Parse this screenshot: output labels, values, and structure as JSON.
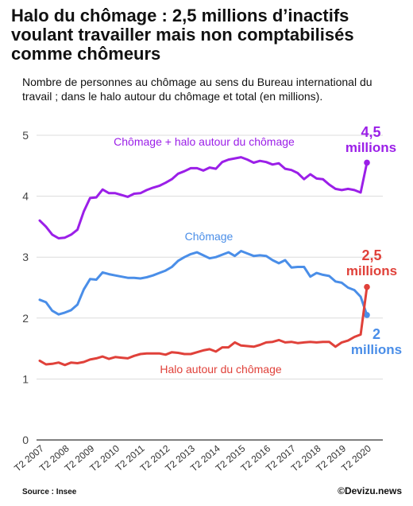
{
  "header": {
    "title": "Halo du chômage : 2,5 millions d’inactifs voulant travailler mais non comptabilisés comme chômeurs",
    "subtitle": "Nombre de personnes au chômage au sens du Bureau international du travail ; dans le halo autour du chômage et total (en millions)."
  },
  "footer": {
    "source": "Source : Insee",
    "credit": "©Devizu.news"
  },
  "chart_data": {
    "type": "line",
    "x_ticks": [
      "T2 2007",
      "T2 2008",
      "T2 2009",
      "T2 2010",
      "T2 2011",
      "T2 2012",
      "T2 2013",
      "T2 2014",
      "T2 2015",
      "T2 2016",
      "T2 2017",
      "T2 2018",
      "T2 2019",
      "T2 2020"
    ],
    "x_range": [
      2007.25,
      2020.25
    ],
    "y_ticks": [
      "0",
      "1",
      "2",
      "3",
      "4",
      "5"
    ],
    "ylim": [
      0,
      5
    ],
    "grid": true,
    "series": [
      {
        "name": "Chômage + halo autour du chômage",
        "color": "#9b1fe8",
        "x": [
          2007.25,
          2007.5,
          2007.75,
          2008.0,
          2008.25,
          2008.5,
          2008.75,
          2009.0,
          2009.25,
          2009.5,
          2009.75,
          2010.0,
          2010.25,
          2010.5,
          2010.75,
          2011.0,
          2011.25,
          2011.5,
          2011.75,
          2012.0,
          2012.25,
          2012.5,
          2012.75,
          2013.0,
          2013.25,
          2013.5,
          2013.75,
          2014.0,
          2014.25,
          2014.5,
          2014.75,
          2015.0,
          2015.25,
          2015.5,
          2015.75,
          2016.0,
          2016.25,
          2016.5,
          2016.75,
          2017.0,
          2017.25,
          2017.5,
          2017.75,
          2018.0,
          2018.25,
          2018.5,
          2018.75,
          2019.0,
          2019.25,
          2019.5,
          2019.75,
          2020.0,
          2020.25
        ],
        "values": [
          3.6,
          3.5,
          3.37,
          3.31,
          3.32,
          3.37,
          3.45,
          3.75,
          3.97,
          3.98,
          4.11,
          4.05,
          4.05,
          4.02,
          3.99,
          4.04,
          4.05,
          4.1,
          4.14,
          4.17,
          4.22,
          4.28,
          4.37,
          4.41,
          4.46,
          4.46,
          4.42,
          4.47,
          4.45,
          4.56,
          4.6,
          4.62,
          4.64,
          4.6,
          4.55,
          4.58,
          4.56,
          4.52,
          4.54,
          4.45,
          4.43,
          4.38,
          4.28,
          4.36,
          4.29,
          4.28,
          4.19,
          4.12,
          4.1,
          4.12,
          4.1,
          4.06,
          4.55
        ],
        "label": "Chômage + halo autour du chômage",
        "end_label": [
          "4,5",
          "millions"
        ]
      },
      {
        "name": "Chômage",
        "color": "#4a8ee8",
        "x": [
          2007.25,
          2007.5,
          2007.75,
          2008.0,
          2008.25,
          2008.5,
          2008.75,
          2009.0,
          2009.25,
          2009.5,
          2009.75,
          2010.0,
          2010.25,
          2010.5,
          2010.75,
          2011.0,
          2011.25,
          2011.5,
          2011.75,
          2012.0,
          2012.25,
          2012.5,
          2012.75,
          2013.0,
          2013.25,
          2013.5,
          2013.75,
          2014.0,
          2014.25,
          2014.5,
          2014.75,
          2015.0,
          2015.25,
          2015.5,
          2015.75,
          2016.0,
          2016.25,
          2016.5,
          2016.75,
          2017.0,
          2017.25,
          2017.5,
          2017.75,
          2018.0,
          2018.25,
          2018.5,
          2018.75,
          2019.0,
          2019.25,
          2019.5,
          2019.75,
          2020.0,
          2020.25
        ],
        "values": [
          2.3,
          2.26,
          2.12,
          2.06,
          2.09,
          2.13,
          2.22,
          2.47,
          2.64,
          2.63,
          2.75,
          2.72,
          2.7,
          2.68,
          2.66,
          2.66,
          2.65,
          2.67,
          2.7,
          2.74,
          2.78,
          2.84,
          2.94,
          3.0,
          3.05,
          3.08,
          3.03,
          2.98,
          3.0,
          3.04,
          3.08,
          3.02,
          3.1,
          3.06,
          3.02,
          3.03,
          3.02,
          2.95,
          2.9,
          2.95,
          2.83,
          2.84,
          2.84,
          2.68,
          2.74,
          2.71,
          2.69,
          2.6,
          2.58,
          2.5,
          2.46,
          2.35,
          2.05
        ],
        "label": "Chômage",
        "end_label": [
          "2",
          "millions"
        ]
      },
      {
        "name": "Halo autour du chômage",
        "color": "#e0413a",
        "x": [
          2007.25,
          2007.5,
          2007.75,
          2008.0,
          2008.25,
          2008.5,
          2008.75,
          2009.0,
          2009.25,
          2009.5,
          2009.75,
          2010.0,
          2010.25,
          2010.5,
          2010.75,
          2011.0,
          2011.25,
          2011.5,
          2011.75,
          2012.0,
          2012.25,
          2012.5,
          2012.75,
          2013.0,
          2013.25,
          2013.5,
          2013.75,
          2014.0,
          2014.25,
          2014.5,
          2014.75,
          2015.0,
          2015.25,
          2015.5,
          2015.75,
          2016.0,
          2016.25,
          2016.5,
          2016.75,
          2017.0,
          2017.25,
          2017.5,
          2017.75,
          2018.0,
          2018.25,
          2018.5,
          2018.75,
          2019.0,
          2019.25,
          2019.5,
          2019.75,
          2020.0,
          2020.25
        ],
        "values": [
          1.3,
          1.24,
          1.25,
          1.27,
          1.23,
          1.27,
          1.26,
          1.28,
          1.32,
          1.34,
          1.37,
          1.33,
          1.36,
          1.35,
          1.34,
          1.38,
          1.41,
          1.42,
          1.42,
          1.42,
          1.4,
          1.44,
          1.43,
          1.41,
          1.41,
          1.44,
          1.47,
          1.49,
          1.45,
          1.52,
          1.52,
          1.6,
          1.55,
          1.54,
          1.53,
          1.56,
          1.6,
          1.61,
          1.64,
          1.6,
          1.61,
          1.59,
          1.6,
          1.61,
          1.6,
          1.61,
          1.61,
          1.53,
          1.6,
          1.63,
          1.69,
          1.73,
          2.51
        ],
        "label": "Halo autour du chômage",
        "end_label": [
          "2,5",
          "millions"
        ]
      }
    ]
  }
}
